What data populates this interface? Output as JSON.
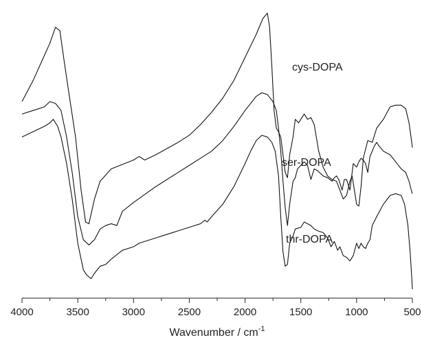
{
  "chart_data": {
    "type": "line",
    "title": "",
    "xlabel": "Wavenumber / cm",
    "xlabel_superscript": "-1",
    "ylabel": "",
    "xlim": [
      4000,
      500
    ],
    "x_reversed": true,
    "y_ticks_shown": false,
    "grid": false,
    "legend": "none",
    "x_ticks": [
      4000,
      3500,
      3000,
      2500,
      2000,
      1500,
      1000,
      500
    ],
    "line_color": "#111111",
    "series": [
      {
        "name": "cys-DOPA",
        "points": [
          [
            4000,
            0.4
          ],
          [
            3900,
            0.52
          ],
          [
            3800,
            0.66
          ],
          [
            3750,
            0.73
          ],
          [
            3700,
            0.82
          ],
          [
            3660,
            0.8
          ],
          [
            3620,
            0.62
          ],
          [
            3580,
            0.45
          ],
          [
            3520,
            0.2
          ],
          [
            3470,
            -0.1
          ],
          [
            3430,
            -0.28
          ],
          [
            3400,
            -0.29
          ],
          [
            3350,
            -0.15
          ],
          [
            3300,
            -0.05
          ],
          [
            3200,
            0.02
          ],
          [
            3000,
            0.07
          ],
          [
            2950,
            0.09
          ],
          [
            2900,
            0.07
          ],
          [
            2800,
            0.1
          ],
          [
            2600,
            0.17
          ],
          [
            2500,
            0.21
          ],
          [
            2400,
            0.27
          ],
          [
            2300,
            0.34
          ],
          [
            2200,
            0.42
          ],
          [
            2100,
            0.52
          ],
          [
            2000,
            0.65
          ],
          [
            1900,
            0.78
          ],
          [
            1840,
            0.87
          ],
          [
            1800,
            0.9
          ],
          [
            1780,
            0.82
          ],
          [
            1760,
            0.6
          ],
          [
            1740,
            0.35
          ],
          [
            1720,
            0.25
          ],
          [
            1700,
            0.23
          ],
          [
            1680,
            0.2
          ],
          [
            1660,
            0.1
          ],
          [
            1640,
            0.0
          ],
          [
            1620,
            -0.03
          ],
          [
            1600,
            0.1
          ],
          [
            1570,
            0.2
          ],
          [
            1550,
            0.3
          ],
          [
            1520,
            0.28
          ],
          [
            1500,
            0.3
          ],
          [
            1470,
            0.33
          ],
          [
            1440,
            0.3
          ],
          [
            1410,
            0.31
          ],
          [
            1380,
            0.27
          ],
          [
            1340,
            0.12
          ],
          [
            1300,
            0.03
          ],
          [
            1260,
            -0.02
          ],
          [
            1220,
            -0.04
          ],
          [
            1180,
            -0.05
          ],
          [
            1150,
            -0.1
          ],
          [
            1120,
            -0.15
          ],
          [
            1090,
            -0.13
          ],
          [
            1060,
            -0.05
          ],
          [
            1040,
            -0.02
          ],
          [
            1020,
            -0.1
          ],
          [
            1000,
            -0.18
          ],
          [
            980,
            -0.19
          ],
          [
            960,
            -0.08
          ],
          [
            940,
            0.08
          ],
          [
            900,
            0.18
          ],
          [
            860,
            0.17
          ],
          [
            820,
            0.25
          ],
          [
            760,
            0.3
          ],
          [
            700,
            0.37
          ],
          [
            650,
            0.38
          ],
          [
            600,
            0.38
          ],
          [
            560,
            0.36
          ],
          [
            530,
            0.28
          ],
          [
            510,
            0.19
          ],
          [
            500,
            0.14
          ]
        ]
      },
      {
        "name": "ser-DOPA",
        "points": [
          [
            4000,
            0.33
          ],
          [
            3900,
            0.35
          ],
          [
            3800,
            0.37
          ],
          [
            3750,
            0.4
          ],
          [
            3700,
            0.39
          ],
          [
            3650,
            0.35
          ],
          [
            3600,
            0.2
          ],
          [
            3550,
            0.0
          ],
          [
            3500,
            -0.25
          ],
          [
            3450,
            -0.38
          ],
          [
            3400,
            -0.41
          ],
          [
            3350,
            -0.38
          ],
          [
            3300,
            -0.32
          ],
          [
            3250,
            -0.3
          ],
          [
            3200,
            -0.29
          ],
          [
            3150,
            -0.3
          ],
          [
            3100,
            -0.22
          ],
          [
            3000,
            -0.17
          ],
          [
            2800,
            -0.08
          ],
          [
            2600,
            0.0
          ],
          [
            2500,
            0.04
          ],
          [
            2400,
            0.08
          ],
          [
            2300,
            0.12
          ],
          [
            2200,
            0.18
          ],
          [
            2100,
            0.26
          ],
          [
            2000,
            0.35
          ],
          [
            1900,
            0.43
          ],
          [
            1850,
            0.45
          ],
          [
            1800,
            0.44
          ],
          [
            1750,
            0.4
          ],
          [
            1720,
            0.35
          ],
          [
            1700,
            0.25
          ],
          [
            1680,
            0.12
          ],
          [
            1660,
            -0.05
          ],
          [
            1640,
            -0.2
          ],
          [
            1620,
            -0.3
          ],
          [
            1600,
            -0.18
          ],
          [
            1570,
            -0.05
          ],
          [
            1550,
            -0.03
          ],
          [
            1530,
            0.02
          ],
          [
            1500,
            0.04
          ],
          [
            1470,
            0.06
          ],
          [
            1440,
            0.04
          ],
          [
            1410,
            -0.04
          ],
          [
            1380,
            0.02
          ],
          [
            1350,
            0.01
          ],
          [
            1300,
            -0.02
          ],
          [
            1260,
            -0.03
          ],
          [
            1220,
            -0.05
          ],
          [
            1200,
            -0.03
          ],
          [
            1180,
            -0.02
          ],
          [
            1160,
            -0.04
          ],
          [
            1130,
            -0.1
          ],
          [
            1110,
            -0.04
          ],
          [
            1090,
            -0.04
          ],
          [
            1060,
            -0.1
          ],
          [
            1030,
            0.05
          ],
          [
            1000,
            0.03
          ],
          [
            980,
            0.06
          ],
          [
            960,
            0.08
          ],
          [
            940,
            0.07
          ],
          [
            920,
            0.05
          ],
          [
            900,
            0.0
          ],
          [
            880,
            0.09
          ],
          [
            860,
            0.12
          ],
          [
            840,
            0.15
          ],
          [
            820,
            0.17
          ],
          [
            800,
            0.15
          ],
          [
            760,
            0.12
          ],
          [
            700,
            0.1
          ],
          [
            650,
            0.06
          ],
          [
            600,
            0.02
          ],
          [
            560,
            0.0
          ],
          [
            530,
            -0.05
          ],
          [
            510,
            -0.1
          ],
          [
            500,
            -0.12
          ]
        ]
      },
      {
        "name": "thr-DOPA",
        "points": [
          [
            4000,
            0.2
          ],
          [
            3900,
            0.23
          ],
          [
            3800,
            0.26
          ],
          [
            3750,
            0.28
          ],
          [
            3720,
            0.3
          ],
          [
            3680,
            0.26
          ],
          [
            3650,
            0.2
          ],
          [
            3600,
            0.05
          ],
          [
            3550,
            -0.15
          ],
          [
            3500,
            -0.4
          ],
          [
            3450,
            -0.55
          ],
          [
            3420,
            -0.58
          ],
          [
            3380,
            -0.6
          ],
          [
            3350,
            -0.57
          ],
          [
            3300,
            -0.53
          ],
          [
            3250,
            -0.52
          ],
          [
            3200,
            -0.49
          ],
          [
            3100,
            -0.44
          ],
          [
            3000,
            -0.42
          ],
          [
            2950,
            -0.4
          ],
          [
            2800,
            -0.37
          ],
          [
            2700,
            -0.35
          ],
          [
            2600,
            -0.33
          ],
          [
            2500,
            -0.31
          ],
          [
            2400,
            -0.29
          ],
          [
            2360,
            -0.27
          ],
          [
            2340,
            -0.28
          ],
          [
            2300,
            -0.25
          ],
          [
            2200,
            -0.18
          ],
          [
            2100,
            -0.08
          ],
          [
            2000,
            0.05
          ],
          [
            1950,
            0.12
          ],
          [
            1900,
            0.18
          ],
          [
            1850,
            0.21
          ],
          [
            1800,
            0.2
          ],
          [
            1760,
            0.17
          ],
          [
            1730,
            0.12
          ],
          [
            1700,
            -0.02
          ],
          [
            1680,
            -0.25
          ],
          [
            1660,
            -0.45
          ],
          [
            1640,
            -0.53
          ],
          [
            1620,
            -0.52
          ],
          [
            1600,
            -0.4
          ],
          [
            1570,
            -0.36
          ],
          [
            1550,
            -0.32
          ],
          [
            1500,
            -0.31
          ],
          [
            1470,
            -0.28
          ],
          [
            1440,
            -0.29
          ],
          [
            1410,
            -0.3
          ],
          [
            1380,
            -0.32
          ],
          [
            1350,
            -0.33
          ],
          [
            1300,
            -0.34
          ],
          [
            1260,
            -0.37
          ],
          [
            1230,
            -0.42
          ],
          [
            1200,
            -0.39
          ],
          [
            1170,
            -0.44
          ],
          [
            1150,
            -0.42
          ],
          [
            1120,
            -0.47
          ],
          [
            1090,
            -0.48
          ],
          [
            1060,
            -0.5
          ],
          [
            1030,
            -0.47
          ],
          [
            1000,
            -0.4
          ],
          [
            980,
            -0.43
          ],
          [
            960,
            -0.4
          ],
          [
            940,
            -0.42
          ],
          [
            920,
            -0.43
          ],
          [
            900,
            -0.4
          ],
          [
            880,
            -0.38
          ],
          [
            860,
            -0.3
          ],
          [
            820,
            -0.25
          ],
          [
            760,
            -0.18
          ],
          [
            700,
            -0.13
          ],
          [
            650,
            -0.12
          ],
          [
            600,
            -0.13
          ],
          [
            570,
            -0.18
          ],
          [
            540,
            -0.3
          ],
          [
            520,
            -0.45
          ],
          [
            505,
            -0.6
          ],
          [
            500,
            -0.66
          ]
        ]
      }
    ]
  }
}
